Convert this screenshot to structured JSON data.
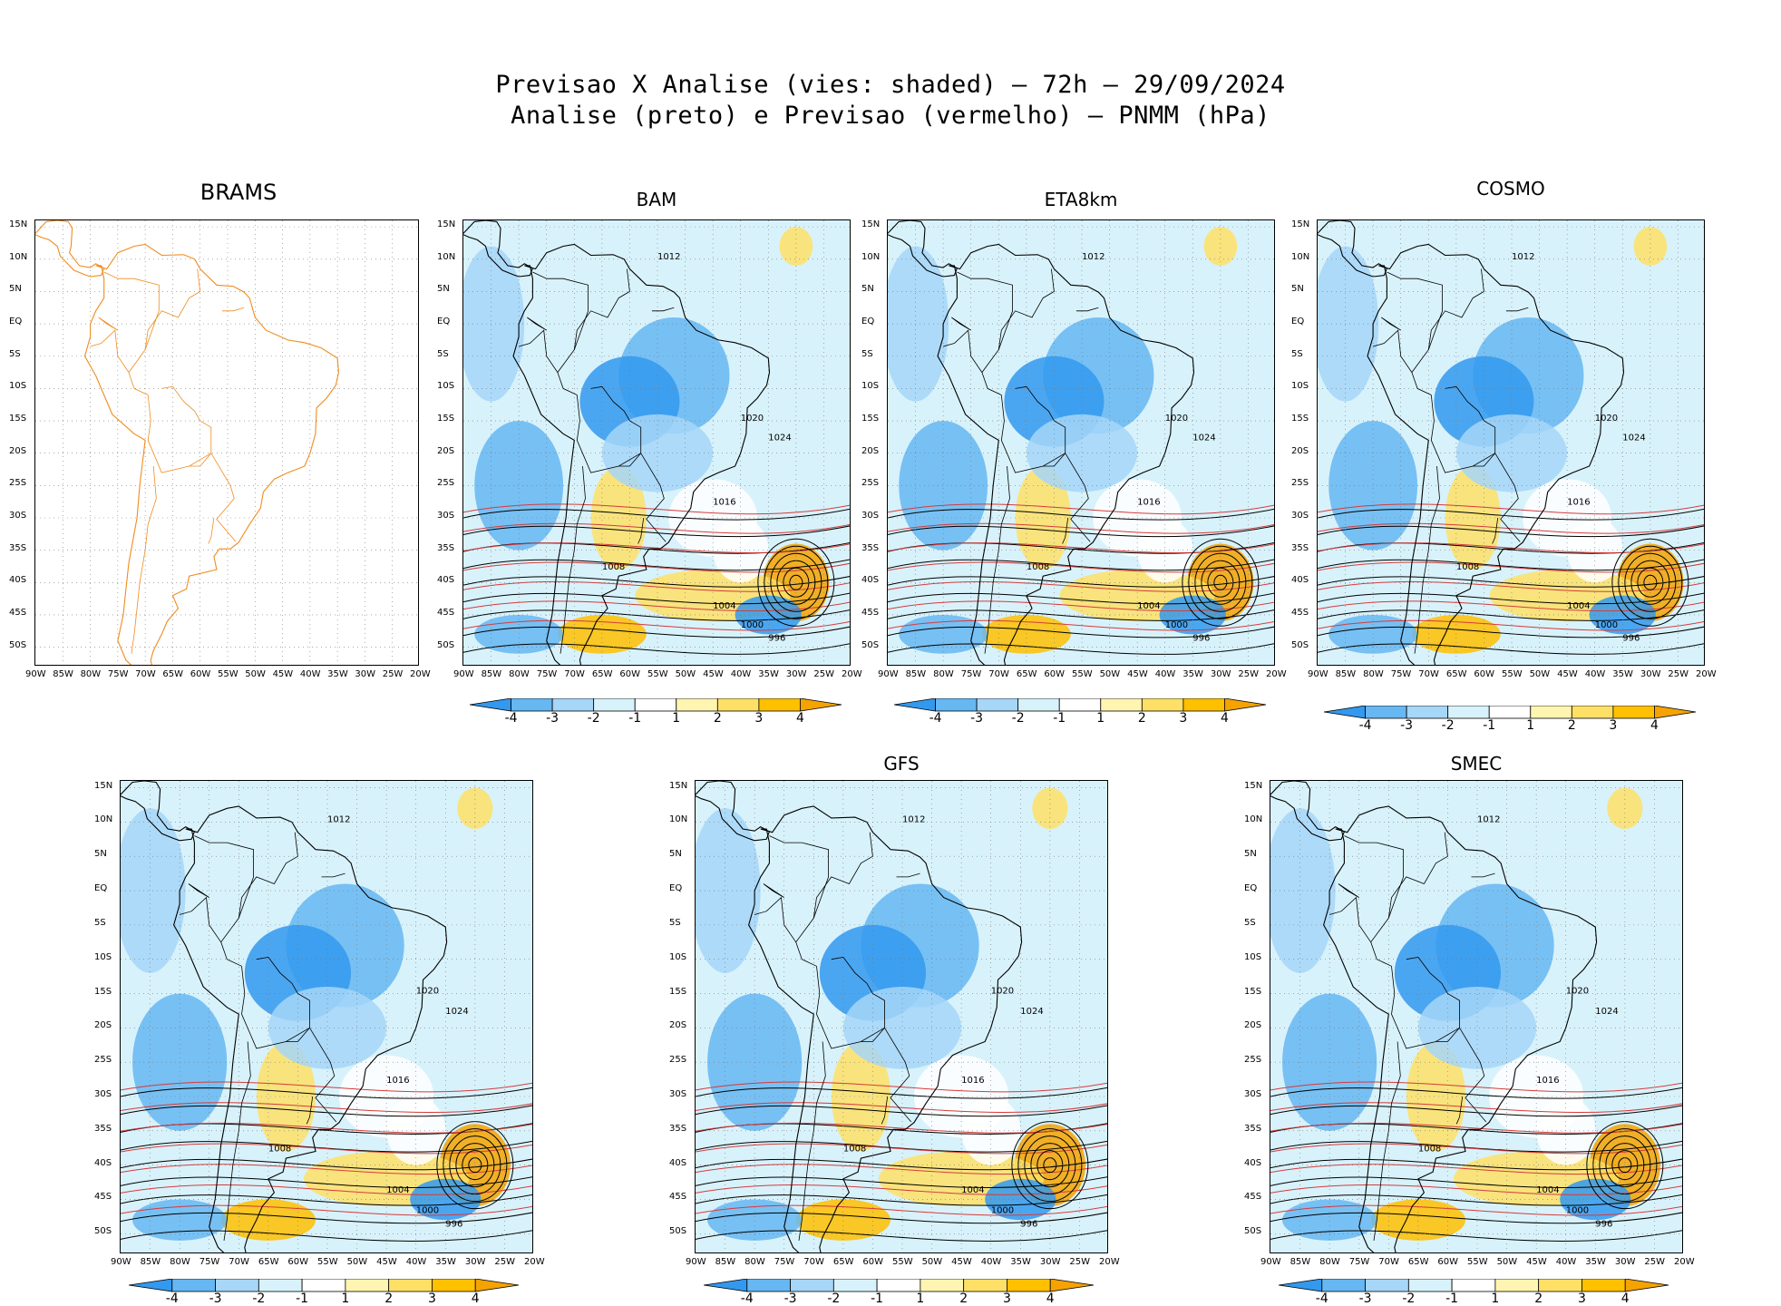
{
  "header": {
    "line1": "Previsao X Analise (vies: shaded) – 72h – 29/09/2024",
    "line2": "Analise (preto) e Previsao (vermelho) – PNMM (hPa)"
  },
  "axes": {
    "lon_labels": [
      "90W",
      "85W",
      "80W",
      "75W",
      "70W",
      "65W",
      "60W",
      "55W",
      "50W",
      "45W",
      "40W",
      "35W",
      "30W",
      "25W",
      "20W"
    ],
    "lat_labels": [
      "15N",
      "10N",
      "5N",
      "EQ",
      "5S",
      "10S",
      "15S",
      "20S",
      "25S",
      "30S",
      "35S",
      "40S",
      "45S",
      "50S"
    ]
  },
  "colorbar": {
    "labels": [
      "-4",
      "-3",
      "-2",
      "-1",
      "1",
      "2",
      "3",
      "4"
    ],
    "colors": [
      "#3399ee",
      "#66b7f2",
      "#a6d6f8",
      "#d8f2fb",
      "#ffffff",
      "#fff5b0",
      "#ffe066",
      "#ffc000",
      "#f5a300"
    ]
  },
  "panels": [
    {
      "title": "BRAMS",
      "empty": true
    },
    {
      "title": "BAM"
    },
    {
      "title": "ETA8km"
    },
    {
      "title": "COSMO"
    },
    {
      "title": ""
    },
    {
      "title": "GFS"
    },
    {
      "title": "SMEC"
    }
  ],
  "isobar_labels": [
    "1012",
    "1016",
    "1020",
    "1008",
    "1004",
    "1000",
    "996",
    "1024"
  ],
  "colors": {
    "analysis": "#000000",
    "forecast": "#d63a3a",
    "coast": "#f08c1e"
  }
}
